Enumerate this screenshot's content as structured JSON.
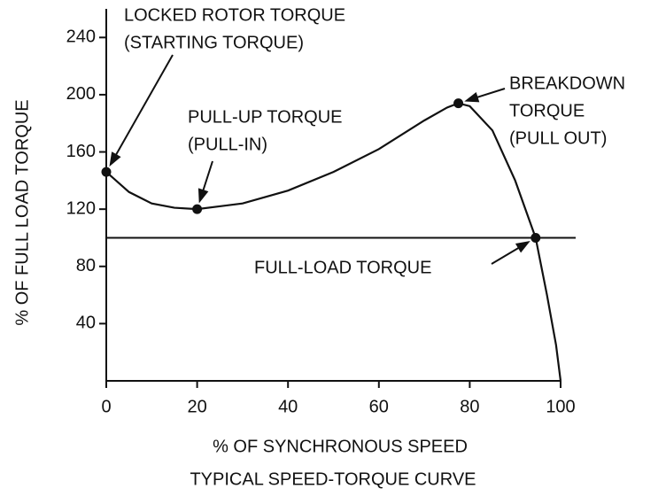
{
  "chart_data": {
    "type": "line",
    "title": "TYPICAL SPEED-TORQUE CURVE",
    "xlabel": "% OF SYNCHRONOUS SPEED",
    "ylabel": "% OF FULL LOAD TORQUE",
    "x": [
      0,
      5,
      10,
      15,
      20,
      30,
      40,
      50,
      60,
      70,
      75,
      77.5,
      80,
      85,
      90,
      94.5,
      97,
      99,
      100
    ],
    "values": [
      146,
      132,
      124,
      121,
      120,
      124,
      133,
      146,
      162,
      182,
      191,
      194,
      192,
      175,
      140,
      100,
      60,
      25,
      0
    ],
    "color": "#111111",
    "hline": 100,
    "xlim": [
      0,
      100
    ],
    "xticks": [
      0,
      20,
      40,
      60,
      80,
      100
    ],
    "ylim": [
      0,
      260
    ],
    "yticks": [
      40,
      80,
      120,
      160,
      200,
      240
    ],
    "annotations": [
      {
        "lines": [
          "LOCKED ROTOR TORQUE",
          "(STARTING TORQUE)"
        ],
        "x": 0,
        "y": 146
      },
      {
        "lines": [
          "PULL-UP TORQUE",
          "(PULL-IN)"
        ],
        "x": 20,
        "y": 120
      },
      {
        "lines": [
          "BREAKDOWN",
          "TORQUE",
          "(PULL OUT)"
        ],
        "x": 77.5,
        "y": 194
      },
      {
        "lines": [
          "FULL-LOAD TORQUE"
        ],
        "x": 94.5,
        "y": 100
      }
    ]
  }
}
